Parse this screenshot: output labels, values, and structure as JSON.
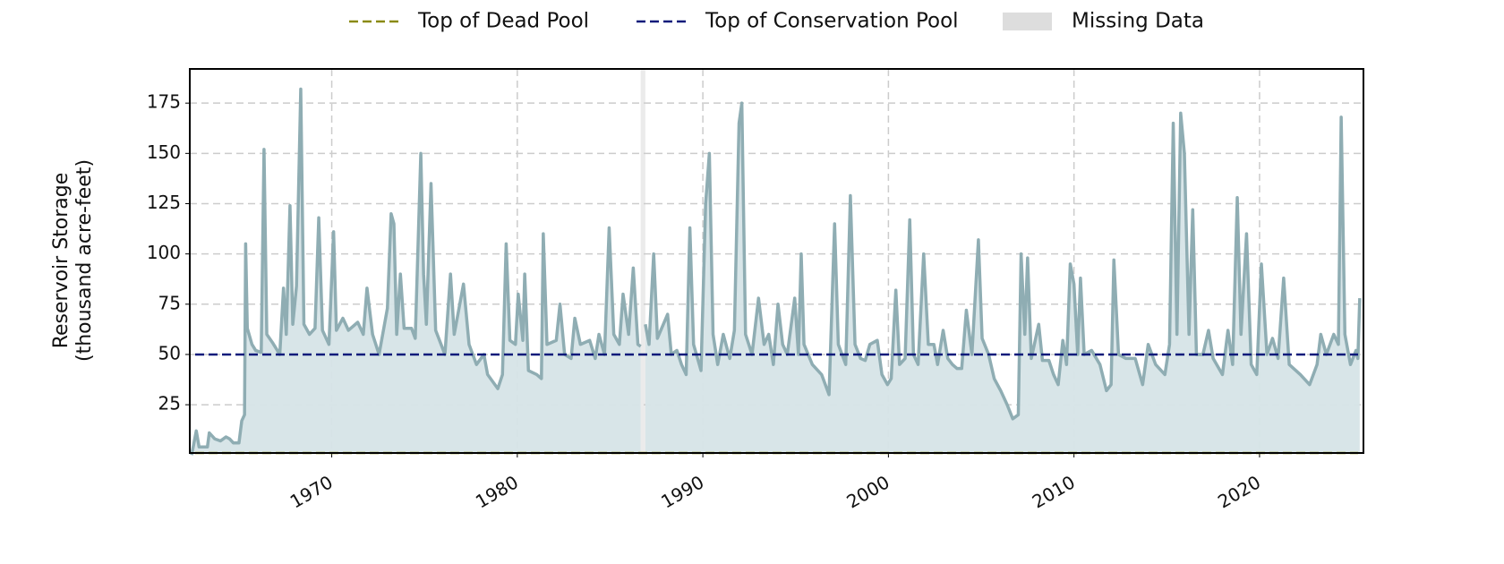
{
  "chart_data": {
    "type": "area-line",
    "ylabel": [
      "Reservoir Storage",
      "(thousand acre-feet)"
    ],
    "xlim": [
      1962.35,
      2025.6
    ],
    "ylim": [
      1,
      192
    ],
    "xticks": [
      1970,
      1980,
      1990,
      2000,
      2010,
      2020
    ],
    "yticks": [
      25,
      50,
      75,
      100,
      125,
      150,
      175
    ],
    "grid": true,
    "line_color": "#8fadb3",
    "fill_color": "#d6e4e7",
    "reference_lines": [
      {
        "name": "Top of Dead Pool",
        "value": 1,
        "color": "#8a8a10"
      },
      {
        "name": "Top of Conservation Pool",
        "value": 50,
        "color": "#0a1a7a"
      }
    ],
    "missing_data": {
      "name": "Missing Data",
      "color": "#dddddd",
      "spans": [
        [
          1986.65,
          1986.9
        ]
      ]
    },
    "x": [
      1962.45,
      1962.7,
      1962.85,
      1963.3,
      1963.4,
      1963.7,
      1964.0,
      1964.3,
      1964.5,
      1964.7,
      1965.0,
      1965.15,
      1965.3,
      1965.36,
      1965.45,
      1965.7,
      1965.9,
      1966.2,
      1966.35,
      1966.5,
      1966.8,
      1967.2,
      1967.4,
      1967.55,
      1967.75,
      1967.9,
      1968.1,
      1968.33,
      1968.5,
      1968.8,
      1969.1,
      1969.3,
      1969.5,
      1969.85,
      1970.1,
      1970.25,
      1970.6,
      1970.9,
      1971.4,
      1971.7,
      1971.9,
      1972.2,
      1972.55,
      1973.0,
      1973.2,
      1973.35,
      1973.5,
      1973.7,
      1973.9,
      1974.3,
      1974.5,
      1974.8,
      1974.95,
      1975.1,
      1975.35,
      1975.6,
      1976.1,
      1976.4,
      1976.6,
      1977.1,
      1977.4,
      1977.8,
      1978.2,
      1978.4,
      1978.95,
      1979.2,
      1979.4,
      1979.6,
      1979.9,
      1980.05,
      1980.3,
      1980.4,
      1980.6,
      1981.05,
      1981.3,
      1981.4,
      1981.6,
      1982.1,
      1982.3,
      1982.55,
      1982.9,
      1983.1,
      1983.4,
      1983.9,
      1984.2,
      1984.4,
      1984.7,
      1984.95,
      1985.2,
      1985.5,
      1985.7,
      1986.0,
      1986.25,
      1986.5,
      1986.65,
      1986.75,
      1986.9,
      1987.1,
      1987.35,
      1987.55,
      1988.1,
      1988.3,
      1988.6,
      1988.85,
      1989.1,
      1989.3,
      1989.5,
      1989.9,
      1990.15,
      1990.35,
      1990.55,
      1990.8,
      1991.1,
      1991.45,
      1991.7,
      1991.95,
      1992.1,
      1992.3,
      1992.65,
      1993.0,
      1993.3,
      1993.55,
      1993.8,
      1994.05,
      1994.3,
      1994.55,
      1994.95,
      1995.15,
      1995.3,
      1995.45,
      1995.9,
      1996.4,
      1996.8,
      1997.1,
      1997.3,
      1997.7,
      1997.95,
      1998.2,
      1998.5,
      1998.75,
      1999.0,
      1999.4,
      1999.65,
      1999.95,
      2000.15,
      2000.4,
      2000.6,
      2000.9,
      2001.15,
      2001.35,
      2001.6,
      2001.9,
      2002.15,
      2002.45,
      2002.65,
      2002.95,
      2003.2,
      2003.45,
      2003.7,
      2003.95,
      2004.2,
      2004.5,
      2004.85,
      2005.05,
      2005.4,
      2005.7,
      2006.05,
      2006.4,
      2006.7,
      2007.0,
      2007.15,
      2007.35,
      2007.5,
      2007.7,
      2008.1,
      2008.3,
      2008.65,
      2008.9,
      2009.15,
      2009.4,
      2009.6,
      2009.8,
      2010.0,
      2010.2,
      2010.35,
      2010.55,
      2010.95,
      2011.4,
      2011.75,
      2012.0,
      2012.15,
      2012.4,
      2012.8,
      2013.3,
      2013.7,
      2014.0,
      2014.4,
      2014.9,
      2015.15,
      2015.35,
      2015.55,
      2015.75,
      2015.95,
      2016.2,
      2016.4,
      2016.6,
      2016.95,
      2017.25,
      2017.5,
      2018.0,
      2018.3,
      2018.55,
      2018.8,
      2019.0,
      2019.3,
      2019.55,
      2019.85,
      2020.1,
      2020.4,
      2020.7,
      2021.0,
      2021.3,
      2021.6,
      2022.2,
      2022.7,
      2023.1,
      2023.3,
      2023.6,
      2024.0,
      2024.25,
      2024.4,
      2024.6,
      2024.9,
      2025.2,
      2025.3,
      2025.4
    ],
    "values": [
      0,
      12,
      4,
      4,
      11,
      8,
      7,
      9,
      8,
      6,
      6,
      17,
      20,
      105,
      63,
      55,
      52,
      51,
      152,
      60,
      56,
      50,
      83,
      60,
      124,
      65,
      84,
      182,
      65,
      60,
      63,
      118,
      62,
      55,
      111,
      62,
      68,
      62,
      66,
      60,
      83,
      60,
      50,
      73,
      120,
      115,
      60,
      90,
      63,
      63,
      58,
      150,
      90,
      65,
      135,
      62,
      50,
      90,
      60,
      85,
      55,
      45,
      50,
      40,
      33,
      40,
      105,
      57,
      55,
      80,
      57,
      90,
      42,
      40,
      38,
      110,
      55,
      57,
      75,
      50,
      48,
      68,
      55,
      57,
      48,
      60,
      50,
      113,
      60,
      55,
      80,
      60,
      93,
      55,
      54,
      null,
      65,
      55,
      100,
      58,
      70,
      50,
      52,
      45,
      40,
      113,
      55,
      42,
      125,
      150,
      60,
      45,
      60,
      48,
      62,
      165,
      175,
      60,
      50,
      78,
      55,
      60,
      45,
      75,
      55,
      50,
      78,
      50,
      100,
      55,
      45,
      40,
      30,
      115,
      55,
      45,
      129,
      55,
      48,
      47,
      55,
      57,
      40,
      35,
      38,
      82,
      45,
      48,
      117,
      50,
      45,
      100,
      55,
      55,
      45,
      62,
      48,
      45,
      43,
      43,
      72,
      50,
      107,
      58,
      50,
      38,
      32,
      25,
      18,
      20,
      100,
      60,
      98,
      48,
      65,
      47,
      47,
      40,
      35,
      57,
      45,
      95,
      85,
      50,
      88,
      50,
      52,
      45,
      32,
      35,
      97,
      50,
      48,
      48,
      35,
      55,
      45,
      40,
      55,
      165,
      60,
      170,
      150,
      60,
      122,
      50,
      50,
      62,
      48,
      40,
      62,
      45,
      128,
      60,
      110,
      45,
      40,
      95,
      50,
      58,
      48,
      88,
      45,
      40,
      35,
      45,
      60,
      50,
      60,
      55,
      168,
      60,
      45,
      52,
      48,
      78
    ]
  }
}
